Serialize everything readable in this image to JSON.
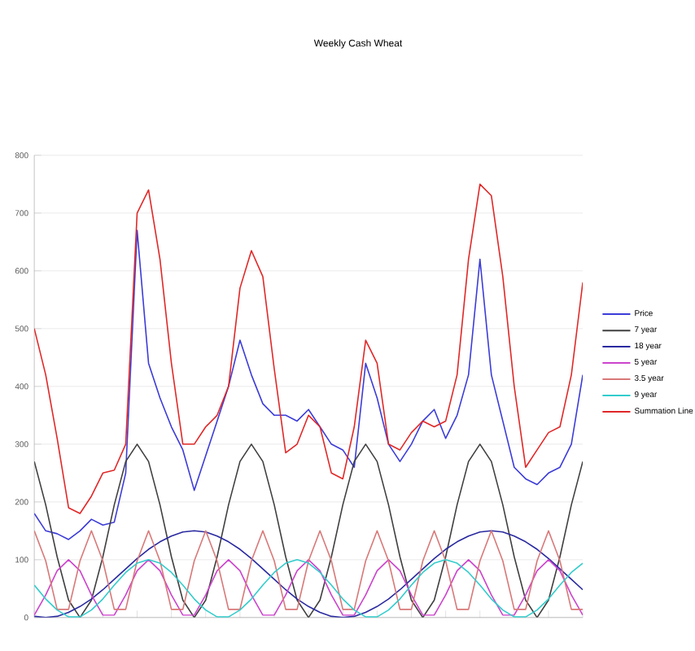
{
  "chart_data": {
    "type": "line",
    "title": "Weekly Cash Wheat",
    "categories": [
      null,
      null,
      null,
      null,
      null,
      null,
      null,
      null,
      null,
      null,
      null,
      null,
      null,
      null,
      null,
      null,
      null,
      null,
      null,
      null,
      null,
      null,
      null,
      null,
      null,
      null,
      null,
      null,
      null,
      null,
      null,
      null,
      null,
      null,
      null,
      null,
      null,
      null,
      null,
      null,
      null,
      null,
      null,
      null,
      null,
      null,
      null,
      null,
      null
    ],
    "ylim": [
      0,
      800
    ],
    "yticks": [
      0,
      100,
      200,
      300,
      400,
      500,
      600,
      700,
      800
    ],
    "grid": "y",
    "legend": "right",
    "tick_labels": "y",
    "marker": "none",
    "line_style": "solid",
    "series": [
      {
        "name": "Price",
        "color": "#3c3cd8",
        "values": [
          180,
          150,
          145,
          135,
          150,
          170,
          160,
          165,
          250,
          670,
          440,
          380,
          330,
          290,
          220,
          280,
          340,
          400,
          480,
          420,
          370,
          350,
          350,
          340,
          360,
          330,
          300,
          290,
          260,
          440,
          380,
          300,
          270,
          300,
          340,
          360,
          310,
          350,
          420,
          620,
          420,
          340,
          260,
          240,
          230,
          250,
          260,
          300,
          420
        ]
      },
      {
        "name": "7 year",
        "color": "#404040",
        "values": [
          270,
          195,
          105,
          30,
          0,
          30,
          105,
          195,
          270,
          300,
          270,
          195,
          105,
          30,
          0,
          30,
          105,
          195,
          270,
          300,
          270,
          195,
          105,
          30,
          0,
          30,
          105,
          195,
          270,
          300,
          270,
          195,
          105,
          30,
          0,
          30,
          105,
          195,
          270,
          300,
          270,
          195,
          105,
          30,
          0,
          30,
          105,
          195,
          270
        ]
      },
      {
        "name": "18 year",
        "color": "#2a2aa0",
        "values": [
          2,
          0,
          2,
          9,
          19,
          32,
          48,
          66,
          84,
          102,
          118,
          131,
          141,
          148,
          150,
          148,
          141,
          131,
          118,
          102,
          84,
          66,
          48,
          32,
          19,
          9,
          2,
          0,
          2,
          9,
          19,
          32,
          48,
          66,
          84,
          102,
          118,
          131,
          141,
          148,
          150,
          148,
          141,
          131,
          118,
          102,
          84,
          66,
          48
        ]
      },
      {
        "name": "5 year",
        "color": "#cc44cc",
        "values": [
          4,
          39,
          81,
          100,
          81,
          39,
          4,
          4,
          39,
          81,
          100,
          81,
          39,
          4,
          4,
          39,
          81,
          100,
          81,
          39,
          4,
          4,
          39,
          81,
          100,
          81,
          39,
          4,
          4,
          39,
          81,
          100,
          81,
          39,
          4,
          4,
          39,
          81,
          100,
          81,
          39,
          4,
          4,
          39,
          81,
          100,
          81,
          39,
          4
        ]
      },
      {
        "name": "3.5 year",
        "color": "#d87878",
        "values": [
          150,
          98,
          14,
          14,
          98,
          150,
          98,
          14,
          14,
          98,
          150,
          98,
          14,
          14,
          98,
          150,
          98,
          14,
          14,
          98,
          150,
          98,
          14,
          14,
          98,
          150,
          98,
          14,
          14,
          98,
          150,
          98,
          14,
          14,
          98,
          150,
          98,
          14,
          14,
          98,
          150,
          98,
          14,
          14,
          98,
          150,
          98,
          14,
          14
        ]
      },
      {
        "name": "9 year",
        "color": "#33cccc",
        "values": [
          56,
          32,
          13,
          1,
          1,
          13,
          32,
          56,
          78,
          94,
          100,
          94,
          78,
          56,
          32,
          13,
          1,
          1,
          13,
          32,
          56,
          78,
          94,
          100,
          94,
          78,
          56,
          32,
          13,
          1,
          1,
          13,
          32,
          56,
          78,
          94,
          100,
          94,
          78,
          56,
          32,
          13,
          1,
          1,
          13,
          32,
          56,
          78,
          94
        ]
      },
      {
        "name": "Summation Line",
        "color": "#e02828",
        "values": [
          500,
          420,
          310,
          190,
          180,
          210,
          250,
          255,
          300,
          700,
          740,
          620,
          440,
          300,
          300,
          330,
          350,
          400,
          570,
          635,
          590,
          430,
          285,
          300,
          350,
          330,
          250,
          240,
          330,
          480,
          440,
          300,
          290,
          320,
          340,
          330,
          340,
          420,
          620,
          750,
          730,
          590,
          400,
          260,
          290,
          320,
          330,
          420,
          580
        ]
      }
    ]
  }
}
